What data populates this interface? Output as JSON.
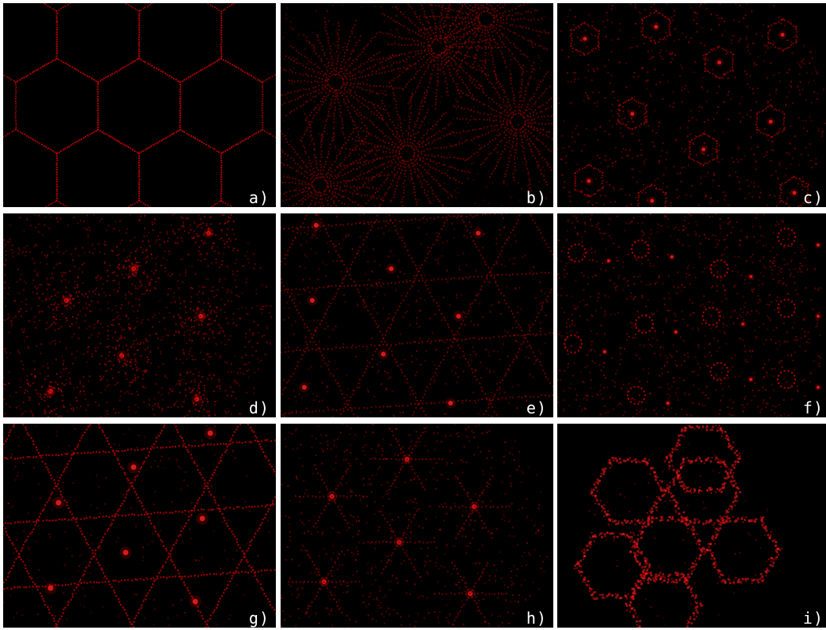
{
  "panels": [
    {
      "id": "a",
      "label": "a)",
      "pattern": "hexagonal-cells"
    },
    {
      "id": "b",
      "label": "b)",
      "pattern": "radial-streaks"
    },
    {
      "id": "c",
      "label": "c)",
      "pattern": "hexagon-rings"
    },
    {
      "id": "d",
      "label": "d)",
      "pattern": "diffuse-clusters"
    },
    {
      "id": "e",
      "label": "e)",
      "pattern": "triangular-network"
    },
    {
      "id": "f",
      "label": "f)",
      "pattern": "ring-clusters"
    },
    {
      "id": "g",
      "label": "g)",
      "pattern": "triangular-lattice"
    },
    {
      "id": "h",
      "label": "h)",
      "pattern": "star-clusters"
    },
    {
      "id": "i",
      "label": "i)",
      "pattern": "hexagonal-cluster"
    }
  ],
  "colors": {
    "background": "#000000",
    "pattern": "#b00000",
    "bright": "#ff2020",
    "label": "#ffffff",
    "separator": "#ffffff"
  }
}
